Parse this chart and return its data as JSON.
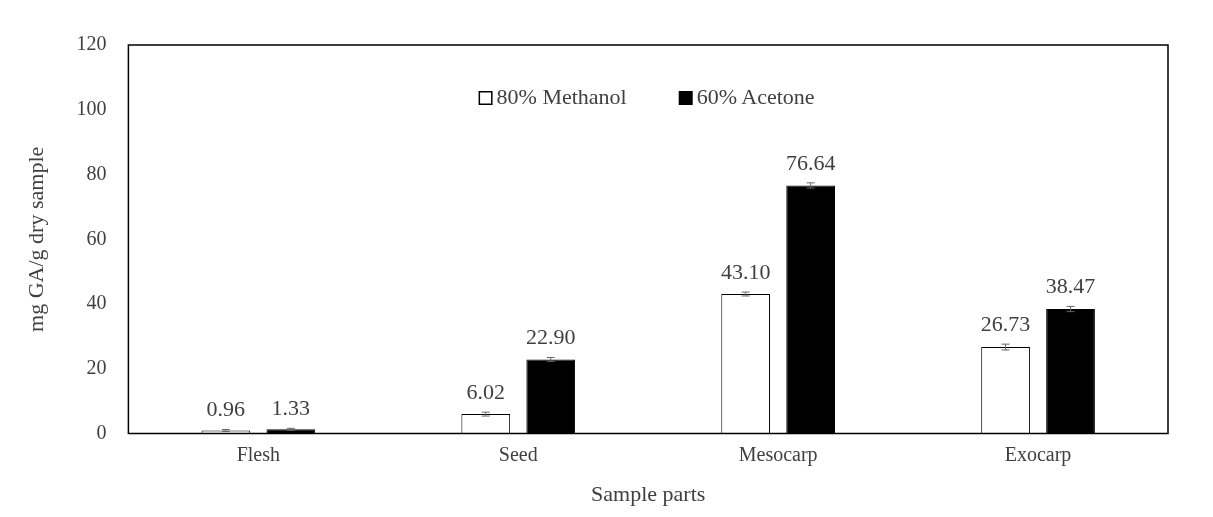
{
  "chart_data": {
    "type": "bar",
    "xlabel": "Sample parts",
    "ylabel": "mg GA/g dry sample",
    "categories": [
      "Flesh",
      "Seed",
      "Mesocarp",
      "Exocarp"
    ],
    "series": [
      {
        "name": "80% Methanol",
        "color": "#ffffff",
        "values": [
          0.96,
          6.02,
          43.1,
          26.73
        ],
        "errors": [
          0.3,
          0.6,
          0.6,
          0.9
        ]
      },
      {
        "name": "60% Acetone",
        "color": "#000000",
        "values": [
          1.33,
          22.9,
          76.64,
          38.47
        ],
        "errors": [
          0.3,
          0.6,
          0.8,
          0.8
        ]
      }
    ],
    "value_labels": [
      [
        "0.96",
        "6.02",
        "43.10",
        "26.73"
      ],
      [
        "1.33",
        "22.90",
        "76.64",
        "38.47"
      ]
    ],
    "ylim": [
      0,
      120
    ],
    "yticks": [
      0,
      20,
      40,
      60,
      80,
      100,
      120
    ],
    "grid": false,
    "legend": "top"
  }
}
